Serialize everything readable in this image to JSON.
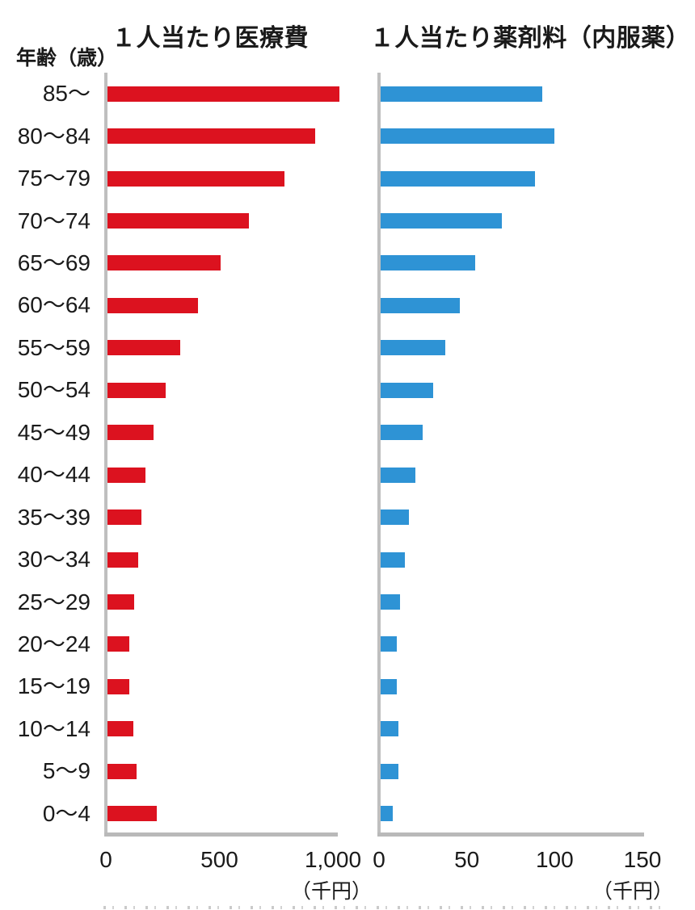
{
  "y_axis_title": "年齢（歳）",
  "chart_data": [
    {
      "type": "bar",
      "orientation": "horizontal",
      "title": "１人当たり医療費",
      "xlabel": "（千円）",
      "bar_color": "#dc121f",
      "categories": [
        "85～",
        "80～84",
        "75～79",
        "70～74",
        "65～69",
        "60～64",
        "55～59",
        "50～54",
        "45～49",
        "40～44",
        "35～39",
        "30～34",
        "25～29",
        "20～24",
        "15～19",
        "10～14",
        "5～9",
        "0～4"
      ],
      "values": [
        1020,
        915,
        778,
        624,
        497,
        397,
        320,
        256,
        202,
        168,
        150,
        134,
        118,
        95,
        95,
        113,
        127,
        218
      ],
      "xlim": [
        0,
        1020
      ],
      "x_ticks": [
        0,
        500,
        1000
      ],
      "x_tick_labels": [
        "0",
        "500",
        "1,000"
      ],
      "grid": false,
      "legend": "none"
    },
    {
      "type": "bar",
      "orientation": "horizontal",
      "title": "１人当たり薬剤料（内服薬）",
      "xlabel": "（千円）",
      "bar_color": "#2e93d5",
      "categories": [
        "85～",
        "80～84",
        "75～79",
        "70～74",
        "65～69",
        "60～64",
        "55～59",
        "50～54",
        "45～49",
        "40～44",
        "35～39",
        "30～34",
        "25～29",
        "20～24",
        "15～19",
        "10～14",
        "5～9",
        "0～4"
      ],
      "values": [
        92,
        99,
        88,
        69,
        54,
        45,
        37,
        30,
        24,
        20,
        16,
        14,
        11,
        9,
        9,
        10,
        10,
        7
      ],
      "xlim": [
        0,
        150
      ],
      "x_ticks": [
        0,
        50,
        100,
        150
      ],
      "x_tick_labels": [
        "0",
        "50",
        "100",
        "150"
      ],
      "grid": false,
      "legend": "none"
    }
  ]
}
